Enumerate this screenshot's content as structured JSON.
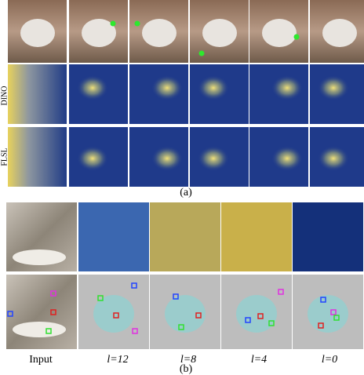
{
  "figure": {
    "panel_a": {
      "row_labels": [
        "DINO",
        "FLSL"
      ],
      "caption": "(a)"
    },
    "panel_b": {
      "column_labels": [
        "Input",
        "l=12",
        "l=8",
        "l=4",
        "l=0"
      ],
      "caption": "(b)"
    }
  }
}
